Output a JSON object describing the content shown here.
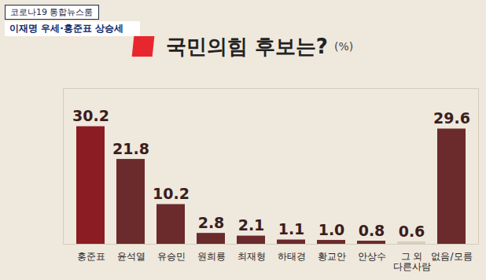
{
  "header": {
    "tag": "코로나19 통합뉴스룸",
    "headline": "이재명 우세·홍준표 상승세"
  },
  "chart_data": {
    "type": "bar",
    "title": "국민의힘 후보는?",
    "ylabel": "(%)",
    "categories": [
      "홍준표",
      "윤석열",
      "유승민",
      "원희룡",
      "최재형",
      "하태경",
      "황교안",
      "안상수",
      "그 외\n다른사람",
      "없음/모름"
    ],
    "values": [
      30.2,
      21.8,
      10.2,
      2.8,
      2.1,
      1.1,
      1.0,
      0.8,
      0.6,
      29.6
    ],
    "value_labels": [
      "30.2",
      "21.8",
      "10.2",
      "2.8",
      "2.1",
      "1.1",
      "1.0",
      "0.8",
      "0.6",
      "29.6"
    ],
    "colors": [
      "#8c1c24",
      "#6b2a2c",
      "#6b2a2c",
      "#6b2a2c",
      "#6b2a2c",
      "#6b2a2c",
      "#6b2a2c",
      "#6b2a2c",
      "#d8cdbf",
      "#6b2a2c"
    ],
    "ylim": [
      0,
      40
    ],
    "data_labels": true,
    "tick_labels": "x",
    "grid": false
  }
}
